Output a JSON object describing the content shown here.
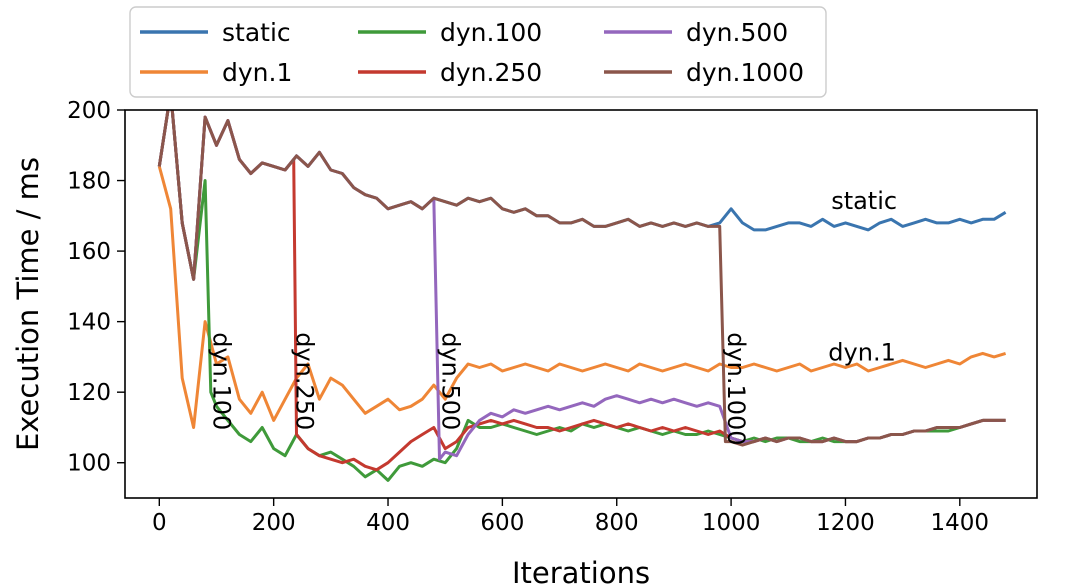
{
  "chart_data": {
    "type": "line",
    "xlabel": "Iterations",
    "ylabel": "Execution Time / ms",
    "xlim": [
      -60,
      1535
    ],
    "ylim": [
      90,
      200
    ],
    "xticks": [
      0,
      200,
      400,
      600,
      800,
      1000,
      1200,
      1400
    ],
    "yticks": [
      100,
      120,
      140,
      160,
      180,
      200
    ],
    "grid": false,
    "legend_position": "top-center",
    "series": [
      {
        "name": "static",
        "color": "#3a75af",
        "x": [
          0,
          20,
          40,
          60,
          80,
          100,
          120,
          140,
          160,
          180,
          200,
          220,
          240,
          260,
          280,
          300,
          320,
          340,
          360,
          380,
          400,
          420,
          440,
          460,
          480,
          500,
          520,
          540,
          560,
          580,
          600,
          620,
          640,
          660,
          680,
          700,
          720,
          740,
          760,
          780,
          800,
          820,
          840,
          860,
          880,
          900,
          920,
          940,
          960,
          980,
          1000,
          1020,
          1040,
          1060,
          1080,
          1100,
          1120,
          1140,
          1160,
          1180,
          1200,
          1220,
          1240,
          1260,
          1280,
          1300,
          1320,
          1340,
          1360,
          1380,
          1400,
          1420,
          1440,
          1460,
          1480
        ],
        "values": [
          184,
          205,
          168,
          152,
          198,
          190,
          197,
          186,
          182,
          185,
          184,
          183,
          187,
          184,
          188,
          183,
          182,
          178,
          176,
          175,
          172,
          173,
          174,
          172,
          175,
          174,
          173,
          175,
          174,
          175,
          172,
          171,
          172,
          170,
          170,
          168,
          168,
          169,
          167,
          167,
          168,
          169,
          167,
          168,
          167,
          168,
          167,
          168,
          167,
          168,
          172,
          168,
          166,
          166,
          167,
          168,
          168,
          167,
          169,
          167,
          168,
          167,
          166,
          168,
          169,
          167,
          168,
          169,
          168,
          168,
          169,
          168,
          169,
          169,
          171
        ]
      },
      {
        "name": "dyn.1",
        "color": "#ef8636",
        "x": [
          0,
          20,
          40,
          60,
          80,
          100,
          120,
          140,
          160,
          180,
          200,
          220,
          240,
          260,
          280,
          300,
          320,
          340,
          360,
          380,
          400,
          420,
          440,
          460,
          480,
          500,
          520,
          540,
          560,
          580,
          600,
          620,
          640,
          660,
          680,
          700,
          720,
          740,
          760,
          780,
          800,
          820,
          840,
          860,
          880,
          900,
          920,
          940,
          960,
          980,
          1000,
          1020,
          1040,
          1060,
          1080,
          1100,
          1120,
          1140,
          1160,
          1180,
          1200,
          1220,
          1240,
          1260,
          1280,
          1300,
          1320,
          1340,
          1360,
          1380,
          1400,
          1420,
          1440,
          1460,
          1480
        ],
        "values": [
          184,
          172,
          124,
          110,
          140,
          128,
          130,
          118,
          114,
          120,
          112,
          118,
          124,
          128,
          118,
          124,
          122,
          118,
          114,
          116,
          118,
          115,
          116,
          118,
          122,
          118,
          124,
          128,
          127,
          128,
          126,
          127,
          128,
          127,
          126,
          128,
          127,
          126,
          127,
          128,
          127,
          126,
          128,
          127,
          126,
          127,
          128,
          127,
          126,
          128,
          127,
          127,
          128,
          127,
          126,
          127,
          128,
          126,
          127,
          128,
          127,
          128,
          126,
          127,
          128,
          129,
          128,
          127,
          128,
          129,
          128,
          130,
          131,
          130,
          131
        ]
      },
      {
        "name": "dyn.100",
        "color": "#3f9a3a",
        "x": [
          0,
          20,
          40,
          60,
          80,
          90,
          100,
          120,
          140,
          160,
          180,
          200,
          220,
          240,
          260,
          280,
          300,
          320,
          340,
          360,
          380,
          400,
          420,
          440,
          460,
          480,
          500,
          520,
          540,
          560,
          580,
          600,
          620,
          640,
          660,
          680,
          700,
          720,
          740,
          760,
          780,
          800,
          820,
          840,
          860,
          880,
          900,
          920,
          940,
          960,
          980,
          1000,
          1020,
          1040,
          1060,
          1080,
          1100,
          1120,
          1140,
          1160,
          1180,
          1200,
          1220,
          1240,
          1260,
          1280,
          1300,
          1320,
          1340,
          1360,
          1380,
          1400,
          1420,
          1440,
          1460,
          1480
        ],
        "values": [
          184,
          205,
          168,
          152,
          180,
          120,
          116,
          112,
          108,
          106,
          110,
          104,
          102,
          108,
          104,
          102,
          103,
          101,
          99,
          96,
          98,
          95,
          99,
          100,
          99,
          101,
          100,
          104,
          112,
          110,
          110,
          111,
          110,
          109,
          108,
          109,
          110,
          109,
          111,
          110,
          111,
          110,
          109,
          110,
          109,
          108,
          109,
          108,
          108,
          109,
          108,
          107,
          106,
          107,
          106,
          107,
          107,
          106,
          106,
          107,
          106,
          106,
          106,
          107,
          107,
          108,
          108,
          109,
          109,
          109,
          109,
          110,
          111,
          112,
          112,
          112
        ]
      },
      {
        "name": "dyn.250",
        "color": "#c4392f",
        "x": [
          0,
          20,
          40,
          60,
          80,
          100,
          120,
          140,
          160,
          180,
          200,
          220,
          235,
          240,
          260,
          280,
          300,
          320,
          340,
          360,
          380,
          400,
          420,
          440,
          460,
          480,
          500,
          520,
          540,
          560,
          580,
          600,
          620,
          640,
          660,
          680,
          700,
          720,
          740,
          760,
          780,
          800,
          820,
          840,
          860,
          880,
          900,
          920,
          940,
          960,
          980,
          1000,
          1020,
          1040,
          1060,
          1080,
          1100,
          1120,
          1140,
          1160,
          1180,
          1200,
          1220,
          1240,
          1260,
          1280,
          1300,
          1320,
          1340,
          1360,
          1380,
          1400,
          1420,
          1440,
          1460,
          1480
        ],
        "values": [
          184,
          205,
          168,
          152,
          198,
          190,
          197,
          186,
          182,
          185,
          184,
          183,
          186,
          108,
          104,
          102,
          101,
          100,
          101,
          99,
          98,
          100,
          103,
          106,
          108,
          110,
          104,
          106,
          110,
          111,
          112,
          111,
          112,
          111,
          110,
          110,
          109,
          110,
          111,
          112,
          111,
          110,
          111,
          110,
          109,
          110,
          109,
          110,
          109,
          108,
          109,
          107,
          106,
          106,
          107,
          106,
          107,
          107,
          106,
          106,
          107,
          106,
          106,
          107,
          107,
          108,
          108,
          109,
          109,
          110,
          110,
          110,
          111,
          112,
          112,
          112
        ]
      },
      {
        "name": "dyn.500",
        "color": "#9467bd",
        "x": [
          0,
          20,
          40,
          60,
          80,
          100,
          120,
          140,
          160,
          180,
          200,
          220,
          240,
          260,
          280,
          300,
          320,
          340,
          360,
          380,
          400,
          420,
          440,
          460,
          480,
          490,
          500,
          520,
          540,
          560,
          580,
          600,
          620,
          640,
          660,
          680,
          700,
          720,
          740,
          760,
          780,
          800,
          820,
          840,
          860,
          880,
          900,
          920,
          940,
          960,
          980,
          1000,
          1020,
          1040,
          1060,
          1080,
          1100,
          1120,
          1140,
          1160,
          1180,
          1200,
          1220,
          1240,
          1260,
          1280,
          1300,
          1320,
          1340,
          1360,
          1380,
          1400,
          1420,
          1440,
          1460,
          1480
        ],
        "values": [
          184,
          205,
          168,
          152,
          198,
          190,
          197,
          186,
          182,
          185,
          184,
          183,
          187,
          184,
          188,
          183,
          182,
          178,
          176,
          175,
          172,
          173,
          174,
          172,
          175,
          101,
          103,
          102,
          108,
          112,
          114,
          113,
          115,
          114,
          115,
          116,
          115,
          116,
          117,
          116,
          118,
          119,
          118,
          117,
          118,
          117,
          118,
          117,
          116,
          117,
          116,
          107,
          106,
          106,
          107,
          106,
          107,
          107,
          106,
          106,
          107,
          106,
          106,
          107,
          107,
          108,
          108,
          109,
          109,
          110,
          110,
          110,
          111,
          112,
          112,
          112
        ]
      },
      {
        "name": "dyn.1000",
        "color": "#8b564b",
        "x": [
          0,
          20,
          40,
          60,
          80,
          100,
          120,
          140,
          160,
          180,
          200,
          220,
          240,
          260,
          280,
          300,
          320,
          340,
          360,
          380,
          400,
          420,
          440,
          460,
          480,
          500,
          520,
          540,
          560,
          580,
          600,
          620,
          640,
          660,
          680,
          700,
          720,
          740,
          760,
          780,
          800,
          820,
          840,
          860,
          880,
          900,
          920,
          940,
          960,
          980,
          990,
          1000,
          1020,
          1040,
          1060,
          1080,
          1100,
          1120,
          1140,
          1160,
          1180,
          1200,
          1220,
          1240,
          1260,
          1280,
          1300,
          1320,
          1340,
          1360,
          1380,
          1400,
          1420,
          1440,
          1460,
          1480
        ],
        "values": [
          184,
          205,
          168,
          152,
          198,
          190,
          197,
          186,
          182,
          185,
          184,
          183,
          187,
          184,
          188,
          183,
          182,
          178,
          176,
          175,
          172,
          173,
          174,
          172,
          175,
          174,
          173,
          175,
          174,
          175,
          172,
          171,
          172,
          170,
          170,
          168,
          168,
          169,
          167,
          167,
          168,
          169,
          167,
          168,
          167,
          168,
          167,
          168,
          167,
          167,
          106,
          106,
          105,
          106,
          107,
          106,
          107,
          107,
          106,
          106,
          107,
          106,
          106,
          107,
          107,
          108,
          108,
          109,
          109,
          110,
          110,
          110,
          111,
          112,
          112,
          112
        ]
      }
    ],
    "annotations": [
      {
        "text": "static",
        "x": 1175,
        "y": 172,
        "rotate": 0
      },
      {
        "text": "dyn.1",
        "x": 1170,
        "y": 129,
        "rotate": 0
      },
      {
        "text": "dyn.100",
        "x": 95,
        "y": 137,
        "rotate": 90
      },
      {
        "text": "dyn.250",
        "x": 240,
        "y": 137,
        "rotate": 90
      },
      {
        "text": "dyn.500",
        "x": 495,
        "y": 137,
        "rotate": 90
      },
      {
        "text": "dyn.1000",
        "x": 995,
        "y": 137,
        "rotate": 90
      }
    ]
  }
}
